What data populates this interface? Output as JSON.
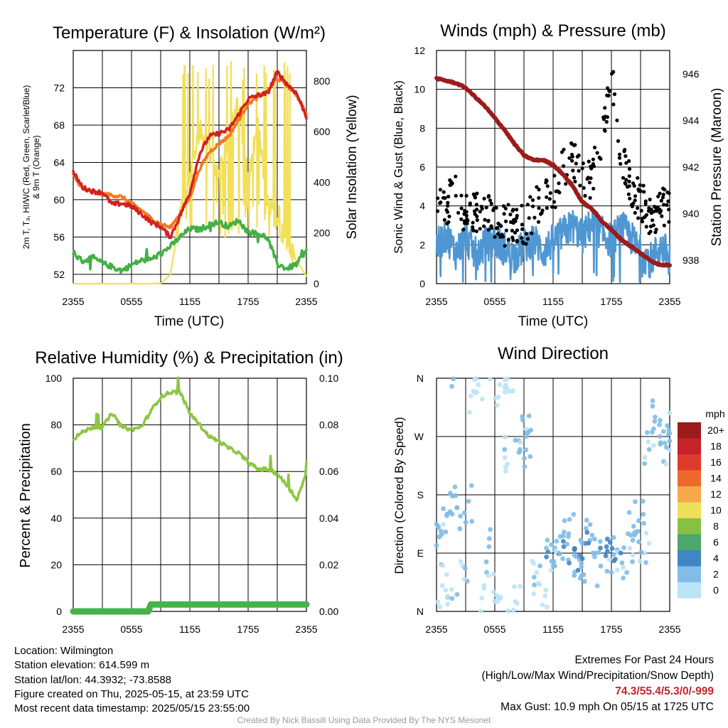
{
  "colors": {
    "temp": "#d42020",
    "dewpoint": "#44b044",
    "orange": "#ef7b22",
    "insolation": "#f2df5a",
    "wind": "#4f97d2",
    "gust": "#000000",
    "pressure": "#9c1b1b",
    "rh": "#8ec641",
    "precip": "#45b34a"
  },
  "x_tick_labels": [
    "2355",
    "0555",
    "1155",
    "1755",
    "2355"
  ],
  "temperature_panel": {
    "title": "Temperature (F) & Insolation (W/m²)",
    "ylabel_line1": "2m T, Tₔ, HI/WC (Red, Green, Scarlet/Blue)",
    "ylabel_line2": "& 9m T (Orange)",
    "ylabel_right": "Solar Insolation (Yellow)",
    "xlabel": "Time (UTC)"
  },
  "winds_panel": {
    "title": "Winds (mph) & Pressure (mb)",
    "ylabel": "Sonic Wind & Gust (Blue, Black)",
    "ylabel_right": "Station Pressure (Maroon)",
    "xlabel": "Time (UTC)"
  },
  "humidity_panel": {
    "title": "Relative Humidity (%) & Precipitation (in)",
    "ylabel": "Percent & Precipitation"
  },
  "direction_panel": {
    "title": "Wind Direction",
    "ylabel": "Direction (Colored By Speed)",
    "legend_unit": "mph",
    "legend_labels": [
      "20+",
      "18",
      "16",
      "14",
      "12",
      "10",
      "8",
      "6",
      "4",
      "2",
      "0"
    ],
    "legend_colors": [
      "#9b1c1c",
      "#c5222a",
      "#e03a2c",
      "#ee6a2c",
      "#f7a84a",
      "#ede05b",
      "#86c146",
      "#4aa86d",
      "#3f86c4",
      "#82bde6",
      "#bde3f6"
    ]
  },
  "footer": {
    "location": "Location: Wilmington",
    "elevation": "Station elevation: 614.599 m",
    "latlon": "Station lat/lon: 44.3932; -73.8588",
    "created": "Figure created on Thu, 2025-05-15, at 23:59 UTC",
    "recent": "Most recent data timestamp: 2025/05/15 23:55:00",
    "extremes_title": "Extremes For Past 24 Hours",
    "extremes_desc": "(High/Low/Max Wind/Precipitation/Snow Depth)",
    "extremes_values": "74.3/55.4/5.3/0/-999",
    "max_gust": "Max Gust: 10.9 mph On 05/15 at 1725 UTC",
    "credit": "Created By Nick Bassill Using Data Provided By The NYS Mesonet"
  },
  "chart_data": [
    {
      "type": "line",
      "title": "Temperature (F) & Insolation (W/m²)",
      "xlabel": "Time (UTC)",
      "ylabel": "2m T, Td, HI/WC (Red, Green, Scarlet/Blue) & 9m T (Orange)",
      "ylabel_right": "Solar Insolation (Yellow)",
      "x_ticks": [
        "2355",
        "0555",
        "1155",
        "1755",
        "2355"
      ],
      "x": [
        0,
        1,
        2,
        3,
        4,
        5,
        6,
        7,
        8,
        9,
        10,
        11,
        12,
        13,
        14,
        15,
        16,
        17,
        18,
        19,
        20,
        21,
        22,
        23,
        24
      ],
      "ylim": [
        51,
        76
      ],
      "yticks": [
        52,
        56,
        60,
        64,
        68,
        72
      ],
      "ylim_right": [
        0,
        920
      ],
      "yticks_right": [
        0,
        200,
        400,
        600,
        800
      ],
      "series": [
        {
          "name": "2m T",
          "axis": "left",
          "values": [
            62.9,
            61.3,
            60.9,
            60.8,
            59.5,
            59.6,
            59.3,
            58.5,
            57.6,
            57.1,
            56.0,
            58.3,
            60.8,
            64.9,
            66.8,
            67.1,
            67.5,
            69.1,
            70.8,
            71.2,
            71.4,
            73.7,
            72.4,
            71.4,
            68.9
          ]
        },
        {
          "name": "9m T",
          "axis": "left",
          "values": [
            62.6,
            61.1,
            60.8,
            60.6,
            60.5,
            60.3,
            59.6,
            58.9,
            58.0,
            57.4,
            57.0,
            58.6,
            60.2,
            63.3,
            65.1,
            66.0,
            66.8,
            68.5,
            70.3,
            71.0,
            71.6,
            73.0,
            72.3,
            71.2,
            69.2
          ]
        },
        {
          "name": "Td",
          "axis": "left",
          "values": [
            54.2,
            53.4,
            53.8,
            53.2,
            52.8,
            52.4,
            53.0,
            53.5,
            53.6,
            54.2,
            55.0,
            56.0,
            56.9,
            56.8,
            57.3,
            57.6,
            57.1,
            57.8,
            56.5,
            56.4,
            55.9,
            53.1,
            52.6,
            53.1,
            54.6
          ]
        },
        {
          "name": "Solar Insolation",
          "axis": "right",
          "values": [
            0,
            0,
            0,
            0,
            0,
            0,
            0,
            0,
            0,
            1,
            35,
            270,
            420,
            610,
            530,
            420,
            590,
            710,
            410,
            630,
            310,
            250,
            160,
            90,
            30
          ]
        }
      ]
    },
    {
      "type": "line",
      "title": "Winds (mph) & Pressure (mb)",
      "xlabel": "Time (UTC)",
      "ylabel": "Sonic Wind & Gust (Blue, Black)",
      "ylabel_right": "Station Pressure (Maroon)",
      "x_ticks": [
        "2355",
        "0555",
        "1155",
        "1755",
        "2355"
      ],
      "x": [
        0,
        1,
        2,
        3,
        4,
        5,
        6,
        7,
        8,
        9,
        10,
        11,
        12,
        13,
        14,
        15,
        16,
        17,
        18,
        19,
        20,
        21,
        22,
        23,
        24
      ],
      "ylim": [
        0,
        12
      ],
      "yticks": [
        0,
        2,
        4,
        6,
        8,
        10,
        12
      ],
      "ylim_right": [
        937,
        947
      ],
      "yticks_right": [
        938,
        940,
        942,
        944,
        946
      ],
      "series": [
        {
          "name": "Sonic Wind",
          "axis": "left",
          "values": [
            1.9,
            2.5,
            1.6,
            2.4,
            1.5,
            2.0,
            2.2,
            1.8,
            1.4,
            1.9,
            2.3,
            1.6,
            2.2,
            2.6,
            3.0,
            2.4,
            3.1,
            2.6,
            2.2,
            2.9,
            2.4,
            1.6,
            1.2,
            1.9,
            1.5
          ]
        },
        {
          "name": "Gust",
          "axis": "left",
          "values": [
            4.1,
            3.6,
            4.5,
            3.2,
            3.3,
            3.6,
            3.1,
            2.7,
            2.9,
            2.5,
            3.4,
            3.9,
            4.2,
            5.5,
            6.1,
            4.8,
            5.2,
            7.1,
            10.9,
            6.2,
            4.7,
            3.8,
            3.2,
            3.6,
            3.5
          ]
        },
        {
          "name": "Station Pressure",
          "axis": "right",
          "values": [
            945.8,
            945.7,
            945.6,
            945.4,
            945.0,
            944.6,
            944.1,
            943.6,
            943.0,
            942.5,
            942.3,
            942.3,
            942.1,
            941.7,
            941.2,
            940.5,
            940.2,
            939.7,
            939.3,
            938.9,
            938.6,
            938.3,
            938.0,
            937.8,
            937.8
          ]
        }
      ]
    },
    {
      "type": "line",
      "title": "Relative Humidity (%) & Precipitation (in)",
      "ylabel": "Percent & Precipitation",
      "x_ticks": [
        "2355",
        "0555",
        "1155",
        "1755",
        "2355"
      ],
      "x": [
        0,
        1,
        2,
        3,
        4,
        5,
        6,
        7,
        8,
        9,
        10,
        11,
        12,
        13,
        14,
        15,
        16,
        17,
        18,
        19,
        20,
        21,
        22,
        23,
        24
      ],
      "ylim": [
        0,
        100
      ],
      "yticks": [
        0,
        20,
        40,
        60,
        80,
        100
      ],
      "ylim_right": [
        0,
        0.1
      ],
      "yticks_right": [
        0.0,
        0.02,
        0.04,
        0.06,
        0.08,
        0.1
      ],
      "series": [
        {
          "name": "Relative Humidity",
          "axis": "left",
          "values": [
            74,
            77,
            79,
            79,
            85,
            79,
            78,
            79,
            86,
            92,
            94,
            94,
            85,
            80,
            75,
            73,
            70,
            68,
            64,
            61,
            61,
            59,
            54,
            48,
            59
          ]
        },
        {
          "name": "Precipitation",
          "axis": "right",
          "values": [
            0,
            0,
            0,
            0,
            0,
            0,
            0,
            0,
            0.003,
            0.003,
            0.003,
            0.003,
            0.003,
            0.003,
            0.003,
            0.003,
            0.003,
            0.003,
            0.003,
            0.003,
            0.003,
            0.003,
            0.003,
            0.003,
            0.003
          ]
        }
      ]
    },
    {
      "type": "scatter",
      "title": "Wind Direction",
      "ylabel": "Direction (Colored By Speed)",
      "x_ticks": [
        "2355",
        "0555",
        "1155",
        "1755",
        "2355"
      ],
      "y_ticks": [
        "N",
        "E",
        "S",
        "W",
        "N"
      ],
      "ylim_degrees": [
        0,
        360
      ],
      "color_scale_mph": [
        0,
        20
      ],
      "x": [
        0.2,
        0.6,
        1.1,
        1.6,
        2.1,
        2.7,
        3.3,
        3.8,
        4.3,
        4.9,
        5.4,
        5.9,
        6.5,
        7.0,
        7.5,
        8.1,
        8.6,
        9.2,
        9.7,
        10.3,
        10.9,
        11.4,
        12.0,
        12.5,
        13.1,
        13.6,
        14.2,
        14.7,
        15.3,
        15.8,
        16.4,
        16.9,
        17.5,
        18.0,
        18.6,
        19.1,
        19.7,
        20.2,
        20.8,
        21.4,
        21.9,
        22.5,
        23.0,
        23.5,
        23.9
      ],
      "y": [
        130,
        40,
        150,
        20,
        160,
        70,
        170,
        340,
        350,
        40,
        100,
        30,
        350,
        250,
        340,
        15,
        250,
        270,
        280,
        60,
        10,
        110,
        70,
        90,
        100,
        120,
        95,
        80,
        105,
        110,
        90,
        70,
        100,
        60,
        95,
        75,
        120,
        110,
        140,
        90,
        250,
        300,
        270,
        260,
        280
      ],
      "speeds_mph": [
        2.5,
        1.5,
        3.0,
        2.0,
        3.5,
        1.5,
        2.5,
        1.0,
        0.5,
        1.5,
        2.0,
        1.0,
        0.5,
        2.5,
        1.0,
        0.5,
        2.0,
        3.0,
        2.5,
        1.5,
        0.5,
        3.5,
        2.0,
        3.0,
        4.0,
        3.5,
        4.5,
        3.5,
        4.0,
        3.5,
        3.5,
        2.5,
        4.0,
        2.0,
        3.5,
        2.5,
        2.0,
        3.0,
        2.5,
        1.5,
        2.0,
        2.5,
        3.0,
        2.5,
        2.0
      ]
    }
  ]
}
